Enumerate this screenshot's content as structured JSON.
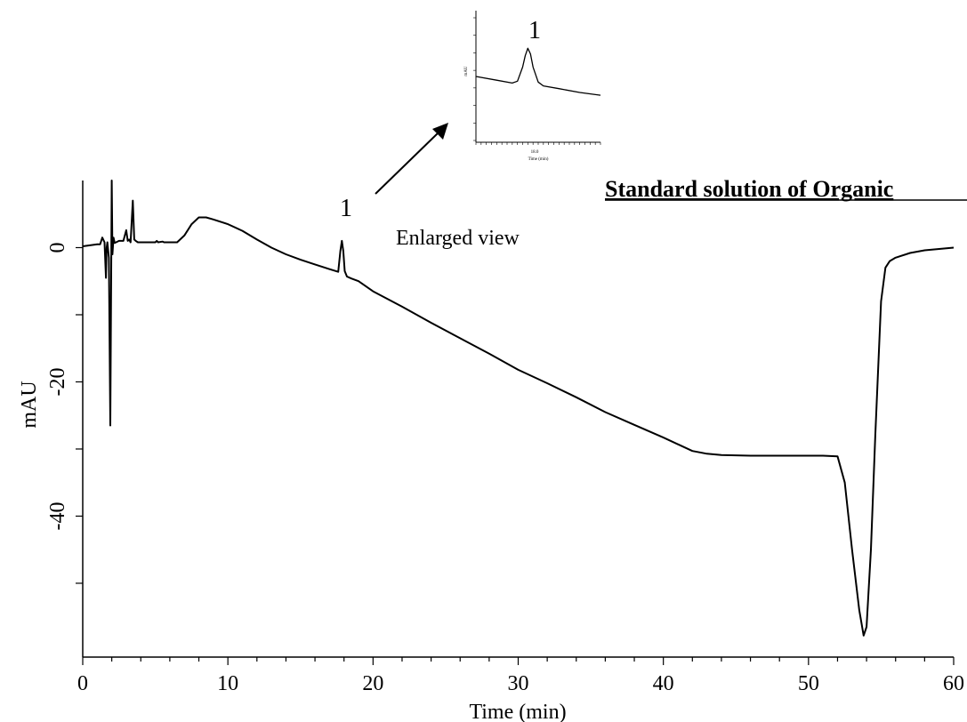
{
  "chart_data": [
    {
      "type": "line",
      "title": "Standard solution of Organic",
      "xlabel": "Time (min)",
      "ylabel": "mAU",
      "xlim": [
        0,
        60
      ],
      "ylim": [
        -61,
        10
      ],
      "x_ticks": [
        0,
        10,
        20,
        30,
        40,
        50,
        60
      ],
      "y_tick_labels": [
        0,
        -20,
        -40
      ],
      "y_minor_ticks": [
        -10,
        -30,
        -50
      ],
      "grid": false,
      "series": [
        {
          "x": [
            0,
            1.0,
            1.2,
            1.35,
            1.5,
            1.6,
            1.65,
            1.7,
            1.8,
            1.9,
            2.0,
            2.05,
            2.12,
            2.2,
            2.3,
            2.5,
            2.8,
            3.0,
            3.1,
            3.2,
            3.3,
            3.45,
            3.55,
            3.65,
            3.8,
            4.2,
            5.0,
            5.1,
            5.2,
            5.5,
            5.6,
            5.7,
            6.0,
            6.5,
            7.0,
            7.5,
            8.0,
            8.5,
            9.0,
            10,
            11,
            12,
            13,
            14,
            15,
            16,
            17,
            17.6,
            17.75,
            17.85,
            17.95,
            18.05,
            18.2,
            18.5,
            19,
            20,
            22,
            24,
            26,
            28,
            30,
            32,
            34,
            36,
            38,
            40,
            42,
            43,
            44,
            46,
            48,
            50,
            51,
            52,
            52.5,
            53,
            53.5,
            53.8,
            54,
            54.3,
            54.6,
            55,
            55.3,
            55.6,
            56,
            57,
            58,
            59,
            60
          ],
          "values": [
            0.2,
            0.5,
            0.5,
            1.5,
            0.8,
            -4.5,
            0.0,
            0.8,
            -1.5,
            -26.5,
            10.0,
            -1.0,
            1.5,
            0.7,
            0.8,
            1.0,
            1.0,
            2.6,
            1.0,
            1.2,
            0.8,
            7.0,
            1.2,
            1.0,
            0.8,
            0.8,
            0.8,
            1.0,
            0.8,
            0.9,
            0.8,
            0.8,
            0.8,
            0.8,
            1.8,
            3.5,
            4.5,
            4.5,
            4.2,
            3.5,
            2.5,
            1.2,
            0.0,
            -1.0,
            -1.8,
            -2.5,
            -3.2,
            -3.6,
            -0.5,
            1.0,
            -0.5,
            -3.5,
            -4.3,
            -4.6,
            -5.0,
            -6.5,
            -8.8,
            -11.2,
            -13.5,
            -15.8,
            -18.2,
            -20.2,
            -22.3,
            -24.5,
            -26.4,
            -28.3,
            -30.3,
            -30.7,
            -30.9,
            -31.0,
            -31.0,
            -31.0,
            -31.0,
            -31.1,
            -35.0,
            -45.0,
            -54.0,
            -57.8,
            -56.5,
            -45.0,
            -28.0,
            -8.0,
            -3.0,
            -2.0,
            -1.5,
            -0.8,
            -0.4,
            -0.2,
            0.0
          ]
        }
      ],
      "annotations": [
        {
          "text": "1",
          "x": 18.0
        },
        {
          "text": "Enlarged view"
        }
      ]
    },
    {
      "type": "line",
      "title": "",
      "xlabel": "Time (min)",
      "ylabel": "mAU",
      "x_tick_labels": [
        "18.0"
      ],
      "grid": false,
      "series": [
        {
          "x": [
            17.0,
            17.4,
            17.7,
            17.8,
            17.9,
            17.95,
            18.0,
            18.05,
            18.1,
            18.2,
            18.3,
            18.6,
            19.0,
            19.4
          ],
          "values": [
            -3.0,
            -3.4,
            -3.7,
            -3.5,
            -2.0,
            -0.8,
            0.0,
            -0.6,
            -2.0,
            -3.6,
            -4.0,
            -4.3,
            -4.7,
            -5.0
          ]
        }
      ],
      "annotations": [
        {
          "text": "1",
          "x": 18.0
        }
      ]
    }
  ]
}
